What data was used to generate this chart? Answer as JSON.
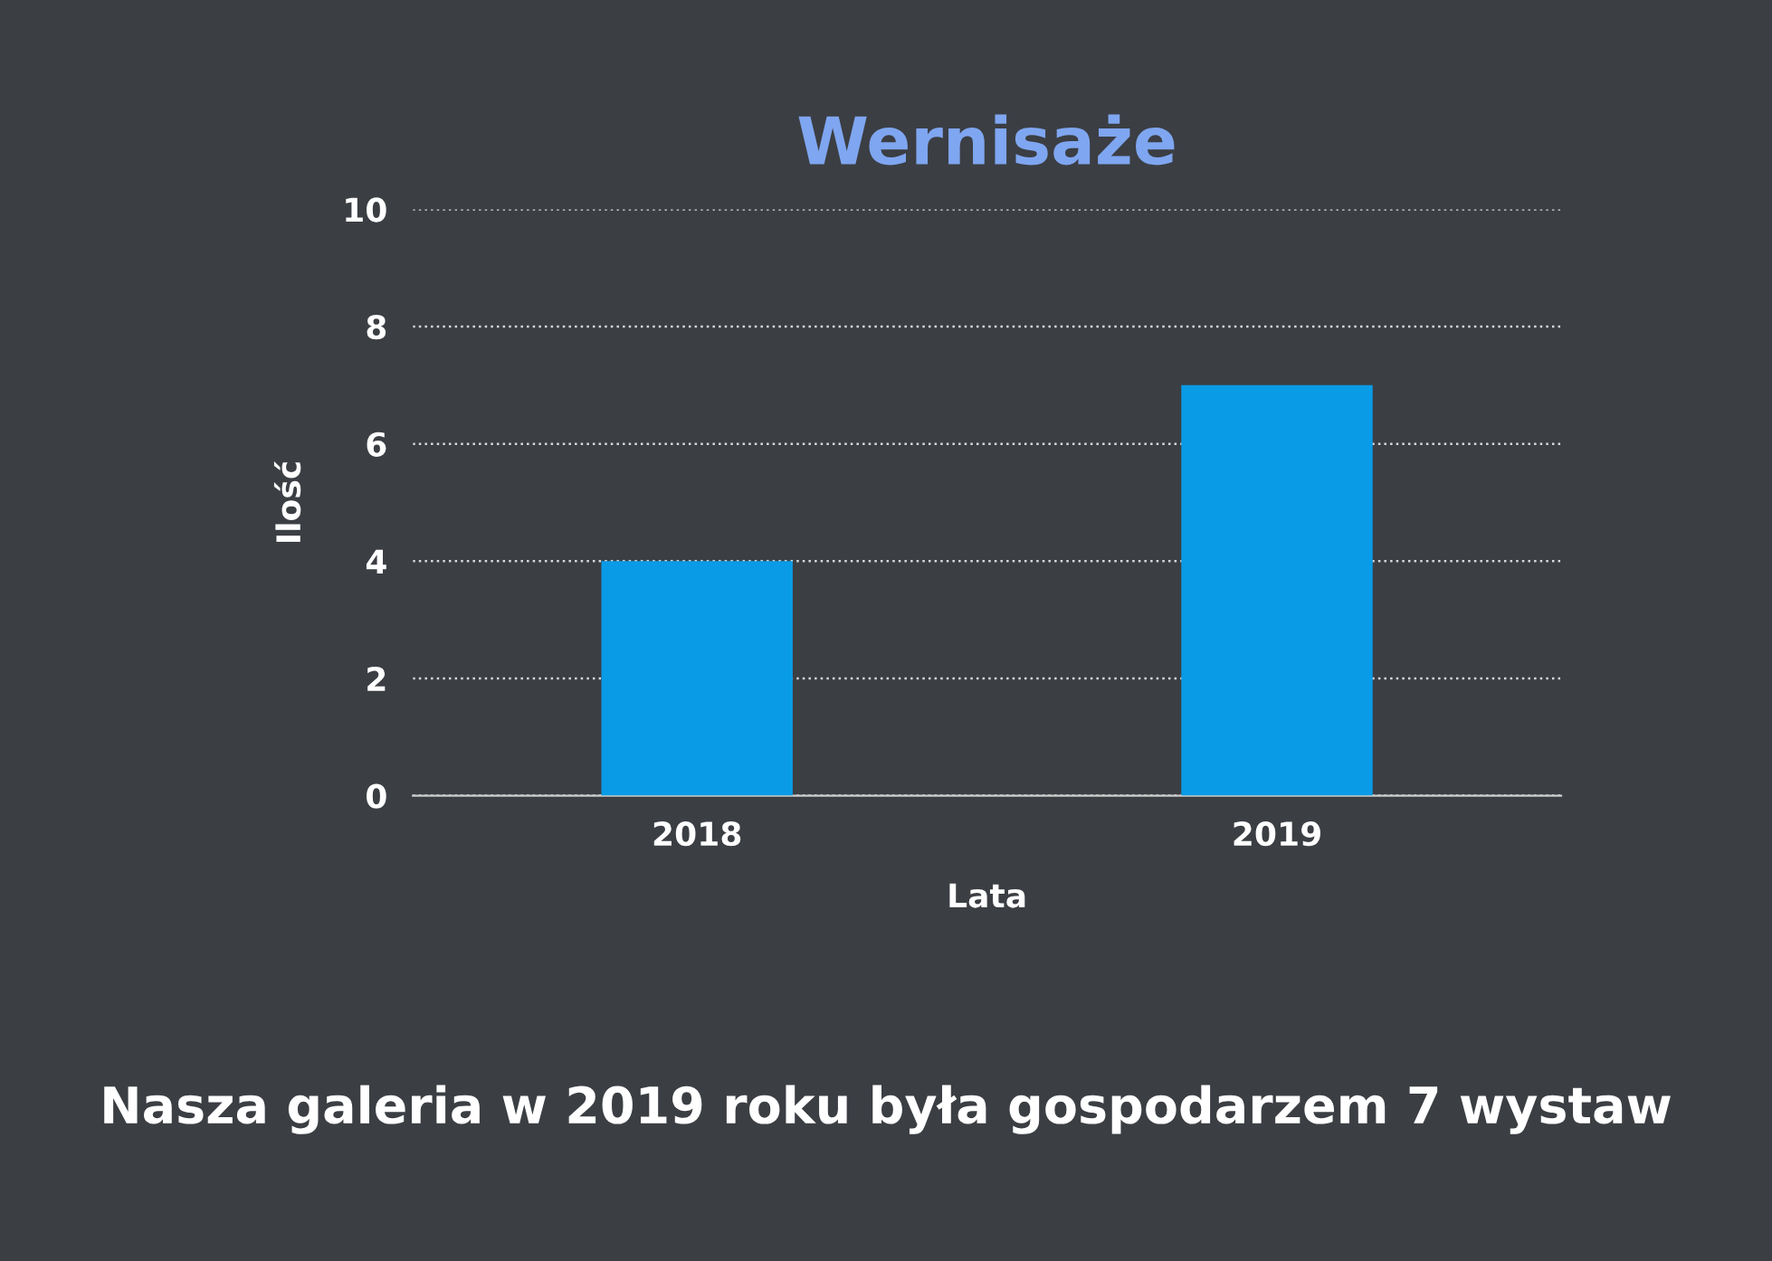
{
  "chart_data": {
    "type": "bar",
    "title": "Wernisaże",
    "xlabel": "Lata",
    "ylabel": "Ilość",
    "categories": [
      "2018",
      "2019"
    ],
    "values": [
      4,
      7
    ],
    "color": "#0a9be6",
    "ylim": [
      0,
      10
    ],
    "yticks": [
      0,
      2,
      4,
      6,
      8,
      10
    ],
    "grid": "y",
    "annotations": [
      "Nasza galeria w 2019 roku była gospodarzem 7 wystaw"
    ]
  }
}
